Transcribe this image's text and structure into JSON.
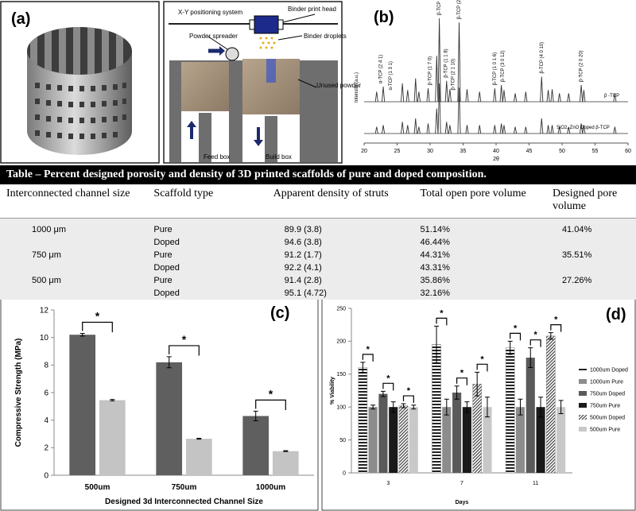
{
  "panel_a": {
    "label": "(a)",
    "schematic_labels": [
      "X-Y positioning system",
      "Binder print head",
      "Powder spreader",
      "Binder droplets",
      "Unused powder",
      "Feed box",
      "Build box"
    ]
  },
  "table": {
    "title": "Table   – Percent designed porosity and density of 3D printed scaffolds of pure and doped composition.",
    "headers": [
      "Interconnected channel size",
      "Scaffold type",
      "Apparent density of struts",
      "Total open pore volume",
      "Designed pore volume"
    ],
    "rows": [
      [
        "1000 μm",
        "Pure",
        "89.9 (3.8)",
        "51.14%",
        "41.04%"
      ],
      [
        null,
        "Doped",
        "94.6 (3.8)",
        "46.44%",
        null
      ],
      [
        "750 μm",
        "Pure",
        "91.2 (1.7)",
        "44.31%",
        "35.51%"
      ],
      [
        null,
        "Doped",
        "92.2 (4.1)",
        "43.31%",
        null
      ],
      [
        "500 μm",
        "Pure",
        "91.4 (2.8)",
        "35.86%",
        "27.26%"
      ],
      [
        null,
        "Doped",
        "95.1 (4.72)",
        "32.16%",
        null
      ]
    ]
  },
  "chart_data": [
    {
      "type": "spectrum",
      "panel_label": "(b)",
      "xlabel": "2θ",
      "ylabel": "Intensity (a.u.)",
      "xlim": [
        20,
        60
      ],
      "xticks": [
        20,
        25,
        30,
        35,
        40,
        45,
        50,
        55,
        60
      ],
      "series": [
        {
          "name": "β -TCP",
          "color": "#333333",
          "x": [
            21.9,
            22.9,
            25.8,
            26.6,
            27.8,
            28.3,
            29.7,
            31.0,
            31.4,
            32.5,
            33.0,
            34.4,
            35.6,
            37.5,
            39.8,
            40.8,
            41.2,
            42.9,
            44.5,
            46.9,
            47.9,
            48.5,
            49.6,
            51.0,
            52.9,
            53.3,
            58.0
          ],
          "values": [
            12,
            18,
            22,
            14,
            28,
            12,
            16,
            55,
            100,
            25,
            15,
            95,
            15,
            12,
            16,
            20,
            14,
            10,
            12,
            30,
            14,
            15,
            10,
            10,
            20,
            14,
            10
          ]
        },
        {
          "name": "SiO2, ZnO Doped β-TCP",
          "color": "#333333",
          "x": [
            21.9,
            22.9,
            25.8,
            26.6,
            27.8,
            28.3,
            29.7,
            31.0,
            31.4,
            32.5,
            33.0,
            34.4,
            35.6,
            37.5,
            39.8,
            40.8,
            41.2,
            42.9,
            44.5,
            46.9,
            47.9,
            48.5,
            49.6,
            51.0,
            52.9,
            53.3,
            58.0
          ],
          "values": [
            8,
            10,
            14,
            10,
            18,
            8,
            12,
            30,
            60,
            14,
            10,
            55,
            10,
            10,
            10,
            12,
            10,
            8,
            8,
            18,
            10,
            10,
            8,
            8,
            12,
            10,
            8
          ]
        }
      ],
      "peak_labels": [
        {
          "text": "α-TCP (2 4 1)",
          "x": 22.5
        },
        {
          "text": "α-TCP (1 3 1)",
          "x": 24.0
        },
        {
          "text": "β-TCP (1 7 0)",
          "x": 30.0
        },
        {
          "text": "β-TCP (0 2 10)",
          "x": 31.4
        },
        {
          "text": "β-TCP (1 1 8)",
          "x": 32.4
        },
        {
          "text": "β-TCP (2 1 10)",
          "x": 33.5
        },
        {
          "text": "β-TCP (2 2 0)",
          "x": 34.4
        },
        {
          "text": "β-TCP (1 0 1 6)",
          "x": 39.8
        },
        {
          "text": "β-TCP (3 0 12)",
          "x": 41.0
        },
        {
          "text": "β-TCP (4 0 10)",
          "x": 46.9
        },
        {
          "text": "β-TCP (2 0 20)",
          "x": 52.9
        }
      ]
    },
    {
      "type": "bar",
      "panel_label": "(c)",
      "ylabel": "Compressive Strength (MPa)",
      "xlabel": "Designed 3d Interconnected Channel Size",
      "categories": [
        "500um",
        "750um",
        "1000um"
      ],
      "ylim": [
        0,
        12
      ],
      "yticks": [
        0,
        2,
        4,
        6,
        8,
        10,
        12
      ],
      "series": [
        {
          "color": "#5f5f5f",
          "pattern": "solid",
          "values": [
            10.2,
            8.2,
            4.3
          ],
          "errors": [
            0.1,
            0.4,
            0.35
          ]
        },
        {
          "color": "#c4c4c4",
          "pattern": "solid",
          "values": [
            5.45,
            2.65,
            1.75
          ],
          "errors": [
            0.05,
            0.03,
            0.03
          ]
        }
      ],
      "significance": [
        [
          "*"
        ],
        [
          "*"
        ],
        [
          "*"
        ]
      ]
    },
    {
      "type": "bar",
      "panel_label": "(d)",
      "ylabel": "% Viability",
      "xlabel": "Days",
      "categories": [
        "3",
        "7",
        "11"
      ],
      "ylim": [
        0,
        250
      ],
      "yticks": [
        0,
        50,
        100,
        150,
        200,
        250
      ],
      "series": [
        {
          "name": "1000um Doped",
          "color": "#222222",
          "pattern": "hstripe",
          "values": [
            160,
            195,
            190
          ],
          "errors": [
            8,
            28,
            10
          ]
        },
        {
          "name": "1000um Pure",
          "color": "#8c8c8c",
          "pattern": "solid",
          "values": [
            100,
            100,
            100
          ],
          "errors": [
            3,
            12,
            12
          ]
        },
        {
          "name": "750um Doped",
          "color": "#5a5a5a",
          "pattern": "solid",
          "values": [
            120,
            122,
            175
          ],
          "errors": [
            4,
            10,
            15
          ]
        },
        {
          "name": "750um Pure",
          "color": "#1a1a1a",
          "pattern": "solid",
          "values": [
            100,
            100,
            100
          ],
          "errors": [
            8,
            8,
            15
          ]
        },
        {
          "name": "500um Doped",
          "color": "#444444",
          "pattern": "diagonal",
          "values": [
            102,
            135,
            208
          ],
          "errors": [
            3,
            18,
            5
          ]
        },
        {
          "name": "500um Pure",
          "color": "#c8c8c8",
          "pattern": "solid",
          "values": [
            100,
            100,
            100
          ],
          "errors": [
            3,
            15,
            10
          ]
        }
      ],
      "significance": [
        [
          "*",
          "*",
          "*"
        ],
        [
          "*",
          "*",
          "*"
        ],
        [
          "*",
          "*",
          "*"
        ]
      ]
    }
  ]
}
